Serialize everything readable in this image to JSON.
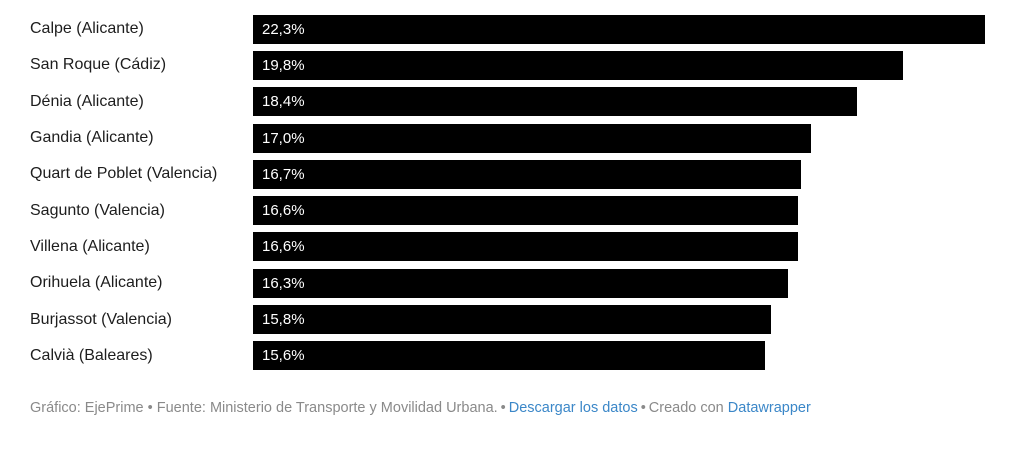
{
  "chart_data": {
    "type": "bar",
    "orientation": "horizontal",
    "title": "",
    "xlabel": "",
    "ylabel": "",
    "xlim": [
      0,
      23.5
    ],
    "grid": false,
    "bar_color": "#000000",
    "value_label_color": "#ffffff",
    "categories": [
      "Calpe (Alicante)",
      "San Roque (Cádiz)",
      "Dénia (Alicante)",
      "Gandia (Alicante)",
      "Quart de Poblet (Valencia)",
      "Sagunto (Valencia)",
      "Villena (Alicante)",
      "Orihuela (Alicante)",
      "Burjassot (Valencia)",
      "Calvià (Baleares)"
    ],
    "values": [
      22.3,
      19.8,
      18.4,
      17.0,
      16.7,
      16.6,
      16.6,
      16.3,
      15.8,
      15.6
    ],
    "value_labels": [
      "22,3%",
      "19,8%",
      "18,4%",
      "17,0%",
      "16,7%",
      "16,6%",
      "16,6%",
      "16,3%",
      "15,8%",
      "15,6%"
    ]
  },
  "footer": {
    "credit": "Gráfico: EjePrime • Fuente: Ministerio de Transporte y Movilidad Urbana.",
    "separator1": "•",
    "download_link": "Descargar los datos",
    "separator2": "•",
    "created_with": "Creado con",
    "datawrapper_link": "Datawrapper",
    "text_color": "#8a8a8a",
    "link_color": "#3b87c8"
  }
}
